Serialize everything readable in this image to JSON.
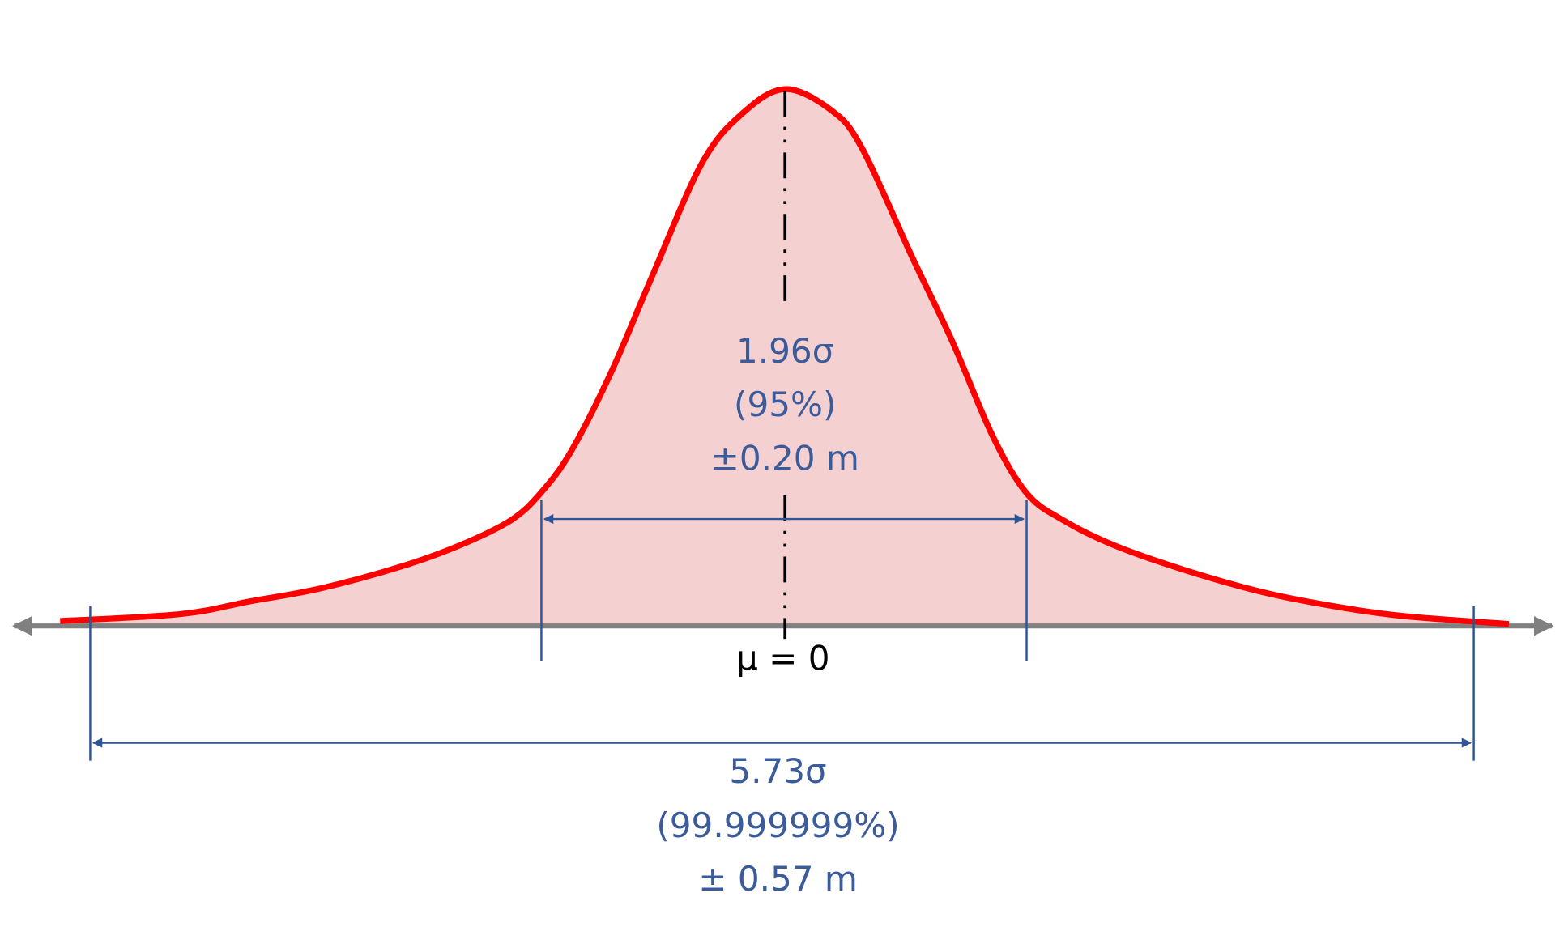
{
  "inner_interval": {
    "lines": [
      "1.96σ",
      "(95%)",
      "±0.20 m"
    ]
  },
  "mean_label": "μ = 0",
  "outer_interval": {
    "lines": [
      "5.73σ",
      "(99.999999%)",
      "± 0.57 m"
    ]
  }
}
